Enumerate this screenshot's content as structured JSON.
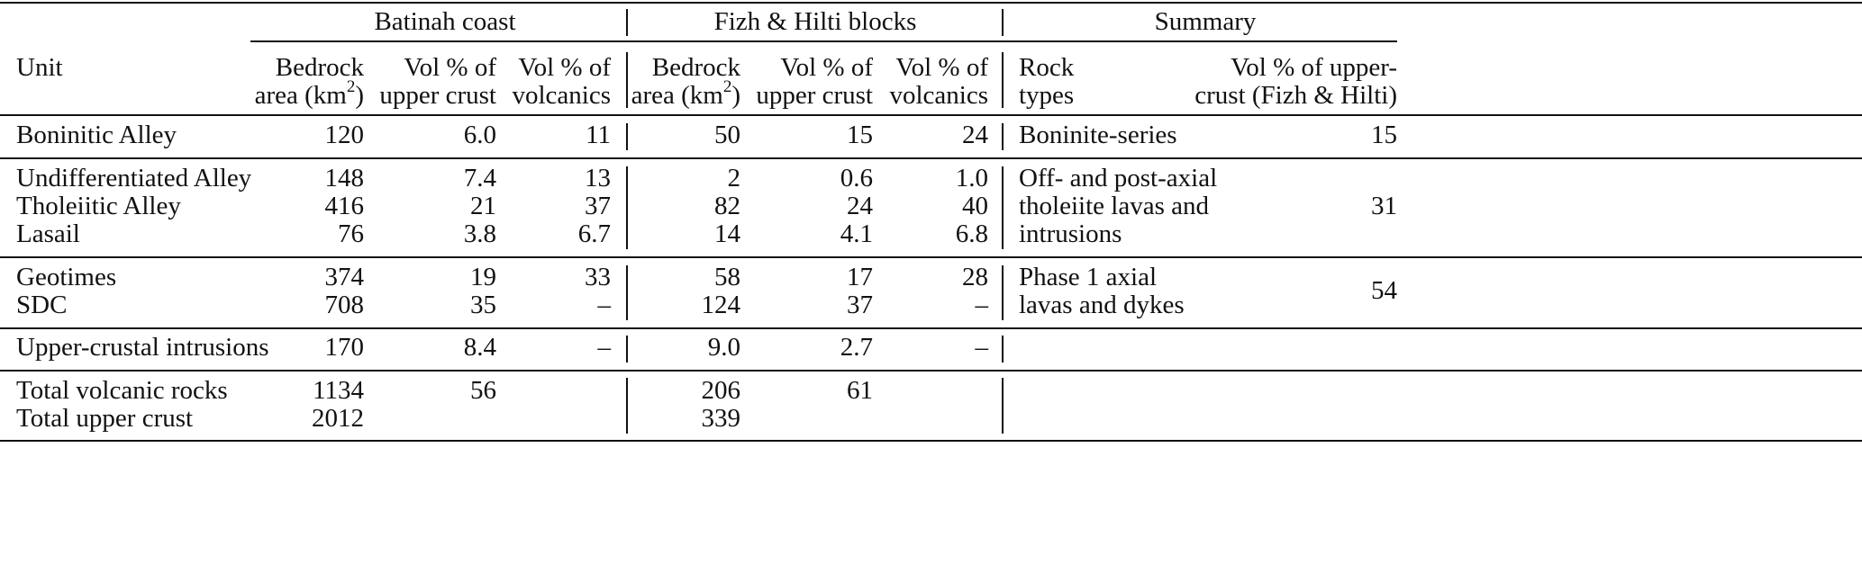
{
  "headers": {
    "group1": "Batinah coast",
    "group2": "Fizh & Hilti blocks",
    "group3": "Summary",
    "unit": "Unit",
    "bedrock_l1": "Bedrock",
    "bedrock_l2": "area (km",
    "bedrock_sup": "2",
    "bedrock_l2_end": ")",
    "volupper_l1": "Vol % of",
    "volupper_l2": "upper crust",
    "volvolc_l1": "Vol % of",
    "volvolc_l2": "volcanics",
    "rock_l1": "Rock",
    "rock_l2": "types",
    "sumvol_l1": "Vol % of upper-",
    "sumvol_l2": "crust (Fizh & Hilti)"
  },
  "rows": [
    {
      "unit": "Boninitic Alley",
      "b_area": "120",
      "b_upper": "6.0",
      "b_volc": "11",
      "f_area": "50",
      "f_upper": "15",
      "f_volc": "24"
    },
    {
      "unit": "Undifferentiated Alley",
      "b_area": "148",
      "b_upper": "7.4",
      "b_volc": "13",
      "f_area": "2",
      "f_upper": "0.6",
      "f_volc": "1.0"
    },
    {
      "unit": "Tholeiitic Alley",
      "b_area": "416",
      "b_upper": "21",
      "b_volc": "37",
      "f_area": "82",
      "f_upper": "24",
      "f_volc": "40"
    },
    {
      "unit": "Lasail",
      "b_area": "76",
      "b_upper": "3.8",
      "b_volc": "6.7",
      "f_area": "14",
      "f_upper": "4.1",
      "f_volc": "6.8"
    },
    {
      "unit": "Geotimes",
      "b_area": "374",
      "b_upper": "19",
      "b_volc": "33",
      "f_area": "58",
      "f_upper": "17",
      "f_volc": "28"
    },
    {
      "unit": "SDC",
      "b_area": "708",
      "b_upper": "35",
      "b_volc": "–",
      "f_area": "124",
      "f_upper": "37",
      "f_volc": "–"
    },
    {
      "unit": "Upper-crustal intrusions",
      "b_area": "170",
      "b_upper": "8.4",
      "b_volc": "–",
      "f_area": "9.0",
      "f_upper": "2.7",
      "f_volc": "–"
    },
    {
      "unit": "Total volcanic rocks",
      "b_area": "1134",
      "b_upper": "56",
      "b_volc": "",
      "f_area": "206",
      "f_upper": "61",
      "f_volc": ""
    },
    {
      "unit": "Total upper crust",
      "b_area": "2012",
      "b_upper": "",
      "b_volc": "",
      "f_area": "339",
      "f_upper": "",
      "f_volc": ""
    }
  ],
  "summary": [
    {
      "lines": [
        "Boninite-series"
      ],
      "value": "15"
    },
    {
      "lines": [
        "Off- and post-axial",
        "tholeiite lavas and",
        "intrusions"
      ],
      "value": "31"
    },
    {
      "lines": [
        "Phase 1 axial",
        "lavas and dykes"
      ],
      "value": "54"
    }
  ]
}
